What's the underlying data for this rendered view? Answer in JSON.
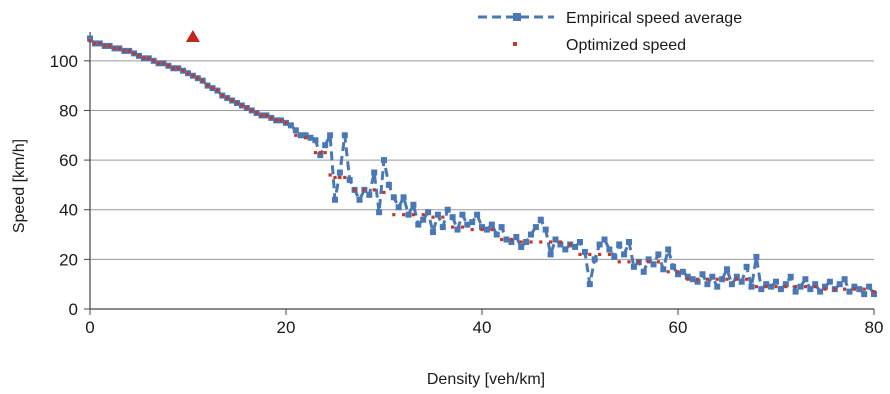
{
  "chart_data": {
    "type": "scatter",
    "title": "",
    "xlabel": "Density [veh/km]",
    "ylabel": "Speed [km/h]",
    "xlim": [
      0,
      80
    ],
    "ylim": [
      0,
      110
    ],
    "xticks": [
      0,
      20,
      40,
      60,
      80
    ],
    "yticks": [
      0,
      20,
      40,
      60,
      80,
      100
    ],
    "grid": "horizontal",
    "legend_position": "top-right",
    "series": [
      {
        "name": "Empirical speed average",
        "style": "dashed-line-square-markers",
        "color": "#4a78b5",
        "x": [
          0,
          0.5,
          1,
          1.5,
          2,
          2.5,
          3,
          3.5,
          4,
          4.5,
          5,
          5.5,
          6,
          6.5,
          7,
          7.5,
          8,
          8.5,
          9,
          9.5,
          10,
          10.5,
          11,
          11.5,
          12,
          12.5,
          13,
          13.5,
          14,
          14.5,
          15,
          15.5,
          16,
          16.5,
          17,
          17.5,
          18,
          18.5,
          19,
          19.5,
          20,
          20.5,
          21,
          21.5,
          22,
          22.5,
          23,
          23.5,
          24,
          24.5,
          25,
          25.5,
          26,
          26.5,
          27,
          27.5,
          28,
          28.5,
          29,
          29.5,
          30,
          30.5,
          31,
          31.5,
          32,
          32.5,
          33,
          33.5,
          34,
          34.5,
          35,
          35.5,
          36,
          36.5,
          37,
          37.5,
          38,
          38.5,
          39,
          39.5,
          40,
          40.5,
          41,
          41.5,
          42,
          42.5,
          43,
          43.5,
          44,
          44.5,
          45,
          45.5,
          46,
          46.5,
          47,
          47.5,
          48,
          48.5,
          49,
          49.5,
          50,
          50.5,
          51,
          51.5,
          52,
          52.5,
          53,
          53.5,
          54,
          54.5,
          55,
          55.5,
          56,
          56.5,
          57,
          57.5,
          58,
          58.5,
          59,
          59.5,
          60,
          60.5,
          61,
          61.5,
          62,
          62.5,
          63,
          63.5,
          64,
          64.5,
          65,
          65.5,
          66,
          66.5,
          67,
          67.5,
          68,
          68.5,
          69,
          69.5,
          70,
          70.5,
          71,
          71.5,
          72,
          72.5,
          73,
          73.5,
          74,
          74.5,
          75,
          75.5,
          76,
          76.5,
          77,
          77.5,
          78,
          78.5,
          79,
          79.5,
          80
        ],
        "y": [
          109,
          107,
          107,
          106,
          106,
          105,
          105,
          104,
          104,
          103,
          102,
          101,
          101,
          100,
          99,
          99,
          98,
          97,
          97,
          96,
          95,
          94,
          93,
          92,
          90,
          89,
          88,
          86,
          85,
          84,
          83,
          82,
          81,
          80,
          79,
          78,
          78,
          77,
          76,
          76,
          75,
          74,
          72,
          70,
          70,
          69,
          68,
          62,
          66,
          70,
          44,
          55,
          70,
          52,
          48,
          44,
          48,
          46,
          55,
          39,
          60,
          50,
          45,
          41,
          45,
          38,
          42,
          34,
          36,
          39,
          31,
          38,
          33,
          40,
          37,
          32,
          38,
          34,
          35,
          38,
          33,
          32,
          34,
          30,
          33,
          28,
          27,
          29,
          25,
          27,
          30,
          33,
          36,
          32,
          22,
          28,
          26,
          24,
          26,
          25,
          27,
          23,
          10,
          20,
          26,
          28,
          24,
          21,
          26,
          22,
          27,
          17,
          19,
          15,
          20,
          18,
          22,
          16,
          24,
          17,
          14,
          15,
          13,
          12,
          11,
          14,
          10,
          13,
          9,
          12,
          16,
          10,
          13,
          11,
          17,
          9,
          21,
          8,
          10,
          9,
          11,
          8,
          10,
          13,
          7,
          9,
          12,
          8,
          10,
          7,
          9,
          11,
          8,
          10,
          12,
          7,
          9,
          8,
          6,
          9,
          6
        ]
      },
      {
        "name": "Optimized speed",
        "style": "small-red-markers",
        "color": "#c0392b",
        "x": [
          0,
          0.5,
          1,
          1.5,
          2,
          2.5,
          3,
          3.5,
          4,
          4.5,
          5,
          5.5,
          6,
          6.5,
          7,
          7.5,
          8,
          8.5,
          9,
          9.5,
          10,
          10.5,
          11,
          11.5,
          12,
          12.5,
          13,
          13.5,
          14,
          14.5,
          15,
          15.5,
          16,
          16.5,
          17,
          17.5,
          18,
          18.5,
          19,
          19.5,
          20,
          21,
          22,
          23,
          23.5,
          24,
          24.5,
          25,
          25.5,
          26,
          27,
          28,
          29,
          30,
          31,
          32,
          33,
          34,
          35,
          36,
          37,
          38,
          39,
          40,
          41,
          42,
          43,
          44,
          45,
          46,
          47,
          48,
          49,
          50,
          51,
          52,
          53,
          54,
          55,
          56,
          57,
          58,
          59,
          60,
          61,
          62,
          63,
          64,
          65,
          66,
          67,
          68,
          69,
          70,
          71,
          72,
          73,
          74,
          75,
          76,
          77,
          78,
          79,
          80
        ],
        "y": [
          108,
          107,
          107,
          106,
          106,
          105,
          105,
          104,
          104,
          103,
          102,
          101,
          101,
          100,
          99,
          99,
          98,
          97,
          97,
          96,
          95,
          94,
          93,
          92,
          90,
          89,
          88,
          86,
          85,
          84,
          83,
          82,
          81,
          80,
          79,
          78,
          78,
          77,
          76,
          76,
          75,
          70,
          69,
          63,
          63,
          63,
          54,
          53,
          53,
          53,
          48,
          48,
          48,
          47,
          38,
          38,
          38,
          38,
          37,
          37,
          33,
          33,
          32,
          32,
          32,
          28,
          28,
          27,
          27,
          27,
          27,
          27,
          26,
          22,
          22,
          22,
          22,
          19,
          19,
          19,
          19,
          19,
          15,
          15,
          12,
          12,
          12,
          12,
          12,
          12,
          12,
          9,
          9,
          9,
          9,
          9,
          9,
          9,
          8,
          8,
          8,
          8,
          8,
          7
        ]
      }
    ],
    "marker_annotation": {
      "type": "triangle",
      "color": "#c0261c",
      "x": 10.5,
      "y": 110
    }
  }
}
